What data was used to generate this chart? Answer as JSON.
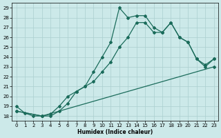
{
  "xlabel": "Humidex (Indice chaleur)",
  "xlim": [
    -0.5,
    23.5
  ],
  "ylim": [
    17.5,
    29.5
  ],
  "yticks": [
    18,
    19,
    20,
    21,
    22,
    23,
    24,
    25,
    26,
    27,
    28,
    29
  ],
  "xticks": [
    0,
    1,
    2,
    3,
    4,
    5,
    6,
    7,
    8,
    9,
    10,
    11,
    12,
    13,
    14,
    15,
    16,
    17,
    18,
    19,
    20,
    21,
    22,
    23
  ],
  "background_color": "#cce9e9",
  "grid_color": "#aacfcf",
  "line_color": "#1a6b5a",
  "line1_x": [
    0,
    1,
    2,
    3,
    4,
    5,
    6,
    7,
    8,
    9,
    10,
    11,
    12,
    13,
    14,
    15,
    16,
    17,
    18,
    19,
    20,
    21,
    22,
    23
  ],
  "line1_y": [
    19.0,
    18.3,
    18.0,
    18.0,
    18.0,
    18.5,
    19.3,
    20.5,
    21.0,
    22.5,
    24.0,
    25.5,
    29.0,
    28.0,
    28.2,
    28.2,
    27.0,
    26.5,
    27.5,
    26.0,
    25.5,
    23.8,
    23.2,
    23.8
  ],
  "line2_x": [
    0,
    3,
    4,
    5,
    6,
    7,
    8,
    9,
    10,
    11,
    12,
    13,
    14,
    15,
    16,
    17,
    18,
    19,
    20,
    21,
    22,
    23
  ],
  "line2_y": [
    18.5,
    18.0,
    18.2,
    19.0,
    20.0,
    20.5,
    21.0,
    21.5,
    22.5,
    23.5,
    25.0,
    26.0,
    27.5,
    27.5,
    26.5,
    26.5,
    27.5,
    26.0,
    25.5,
    23.8,
    23.0,
    23.8
  ],
  "line3_x": [
    0,
    3,
    23
  ],
  "line3_y": [
    18.5,
    18.0,
    23.0
  ]
}
